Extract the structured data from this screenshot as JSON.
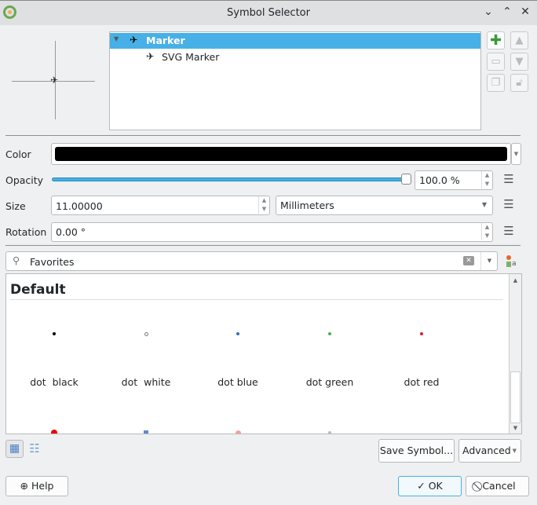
{
  "window": {
    "title": "Symbol Selector",
    "controls": [
      "minimize",
      "maximize",
      "close"
    ]
  },
  "layers": [
    {
      "label": "Marker",
      "selected": true
    },
    {
      "label": "SVG Marker",
      "selected": false
    }
  ],
  "color": {
    "label": "Color",
    "value": "#000000"
  },
  "opacity": {
    "label": "Opacity",
    "value": "100.0 %",
    "level_percent": 100
  },
  "size": {
    "label": "Size",
    "value": "11.00000",
    "unit": "Millimeters"
  },
  "rotation": {
    "label": "Rotation",
    "value": "0.00 °"
  },
  "search": {
    "value": "Favorites"
  },
  "library": {
    "group": "Default",
    "symbols": [
      {
        "label": "dot  black",
        "color": "#000000"
      },
      {
        "label": "dot  white",
        "color": "#ffffff"
      },
      {
        "label": "dot blue",
        "color": "#3a6db5"
      },
      {
        "label": "dot green",
        "color": "#4caf50"
      },
      {
        "label": "dot red",
        "color": "#d9232e"
      }
    ]
  },
  "buttons": {
    "save_symbol": "Save Symbol...",
    "advanced": "Advanced",
    "help": "Help",
    "ok": "OK",
    "cancel": "Cancel"
  },
  "colors": {
    "accent": "#47b0e6"
  }
}
